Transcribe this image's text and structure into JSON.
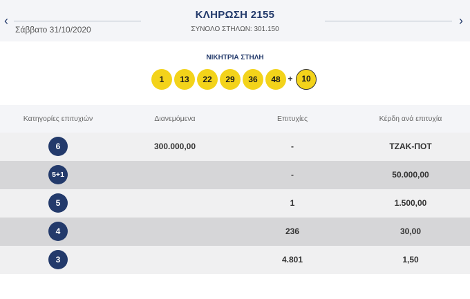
{
  "header": {
    "title": "ΚΛΗΡΩΣΗ 2155",
    "total": "ΣΥΝΟΛΟ ΣΤΗΛΩΝ: 301.150",
    "date": "Σάββατο 31/10/2020",
    "prev_icon": "chevron-left-icon",
    "next_icon": "chevron-right-icon"
  },
  "winning": {
    "title": "ΝΙΚΗΤΡΙΑ ΣΤΗΛΗ",
    "numbers": [
      "1",
      "13",
      "22",
      "29",
      "36",
      "48"
    ],
    "plus": "+",
    "bonus": "10"
  },
  "table": {
    "headers": [
      "Κατηγορίες επιτυχιών",
      "Διανεμόμενα",
      "Επιτυχίες",
      "Κέρδη ανά επιτυχία"
    ],
    "rows": [
      {
        "category": "6",
        "distributed": "300.000,00",
        "winners": "-",
        "prize": "ΤΖΑΚ-ΠΟΤ"
      },
      {
        "category": "5+1",
        "distributed": "",
        "winners": "-",
        "prize": "50.000,00"
      },
      {
        "category": "5",
        "distributed": "",
        "winners": "1",
        "prize": "1.500,00"
      },
      {
        "category": "4",
        "distributed": "",
        "winners": "236",
        "prize": "30,00"
      },
      {
        "category": "3",
        "distributed": "",
        "winners": "4.801",
        "prize": "1,50"
      }
    ]
  },
  "colors": {
    "navy": "#233a6b",
    "ball_yellow": "#f3d31a"
  }
}
